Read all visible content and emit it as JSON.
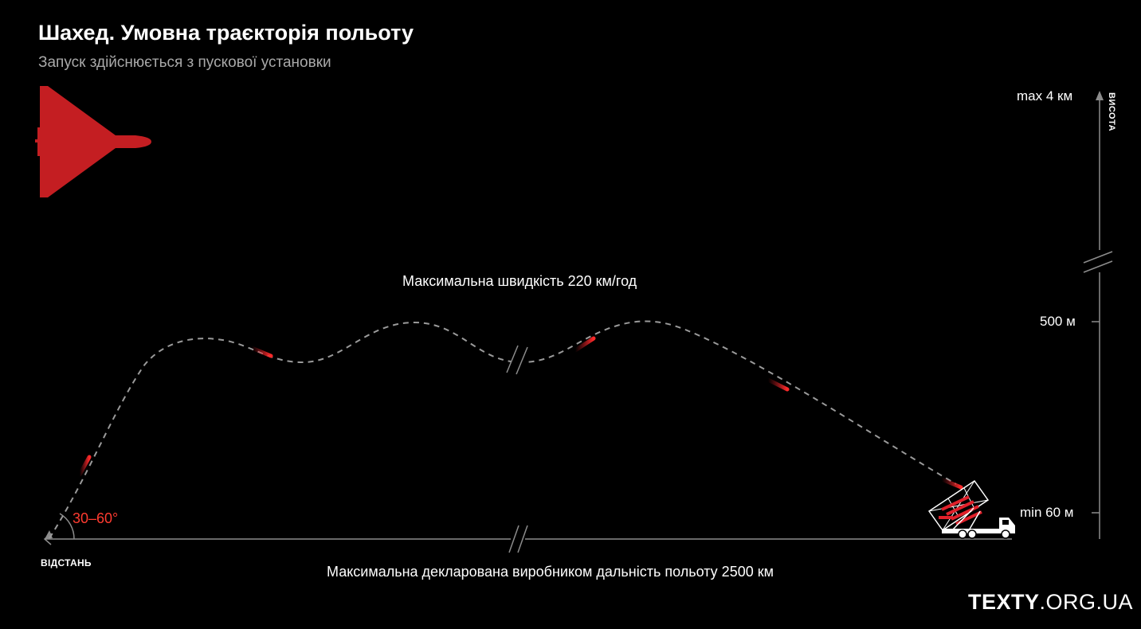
{
  "header": {
    "title": "Шахед. Умовна траєкторія польоту",
    "subtitle": "Запуск здійснюється з пускової установки"
  },
  "annotations": {
    "speed": "Максимальна швидкість 220 км/год",
    "range": "Максимальна декларована виробником дальність польоту 2500 км",
    "launch_angle": "30–60°"
  },
  "axes": {
    "x_label": "ВІДСТАНЬ",
    "y_label": "ВИСОТА",
    "y_ticks": {
      "max": "max 4 км",
      "mid": "500 м",
      "min": "min 60 м"
    }
  },
  "brand": {
    "strong": "TEXTY",
    "rest": ".ORG.UA"
  },
  "icons": {
    "drone": "shahed-drone-icon",
    "launcher": "launcher-truck-icon"
  },
  "colors": {
    "background": "#000000",
    "accent": "#e0202a",
    "angle_text": "#ff3b30",
    "trajectory": "#9a9a9a",
    "axis": "#8c8c8c",
    "drone": "#c41e22"
  }
}
